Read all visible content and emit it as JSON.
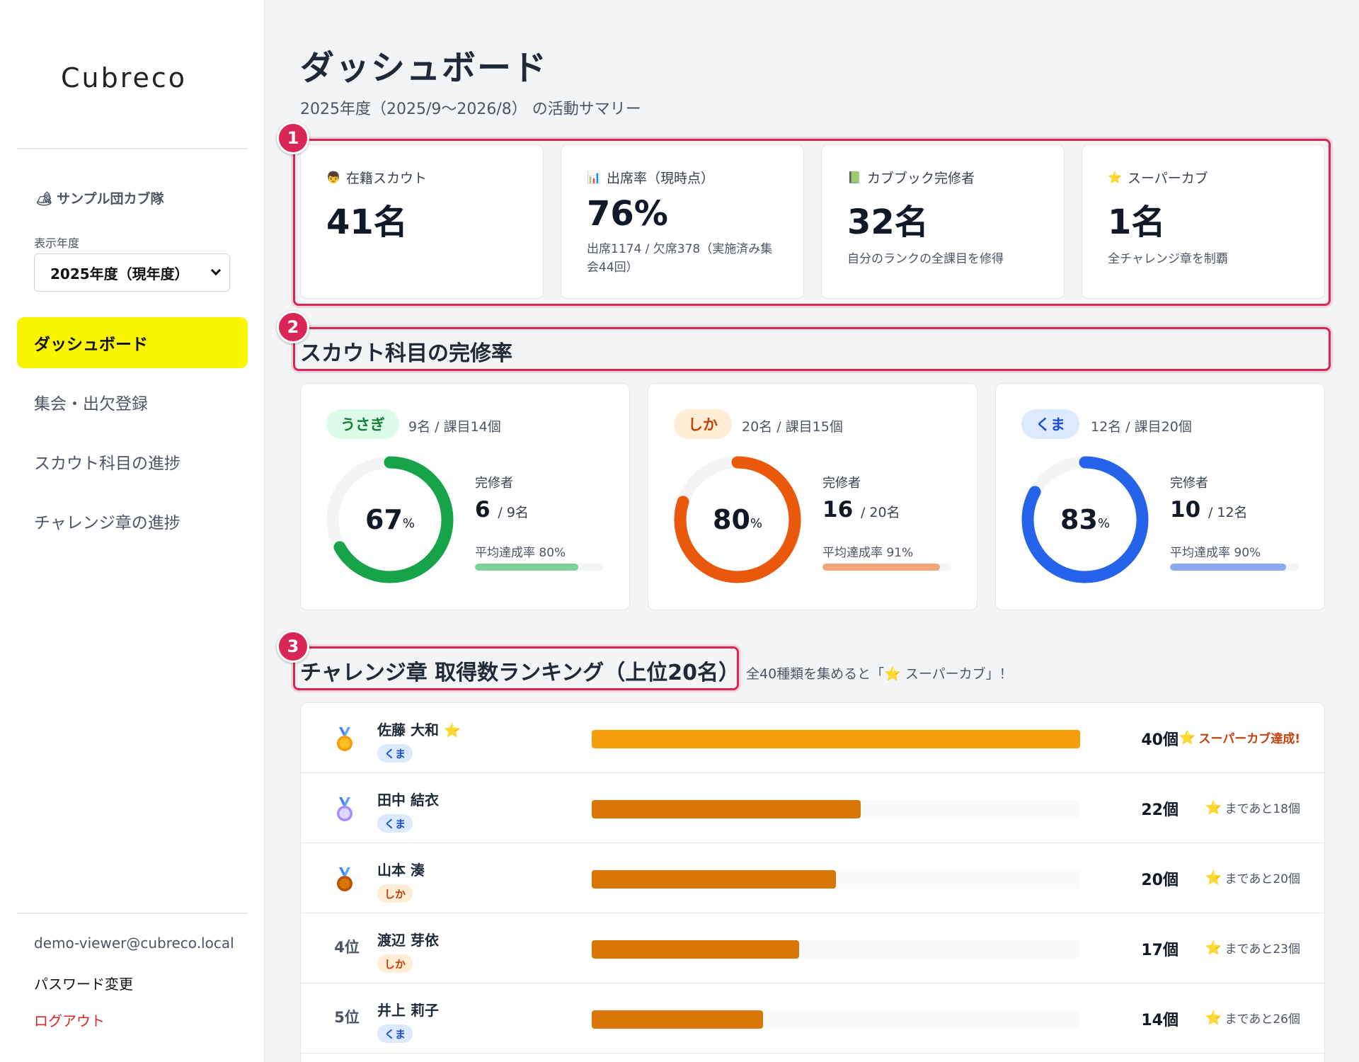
{
  "sidebar": {
    "logo": "Cubreco",
    "troop_name": "サンプル団カブ隊",
    "year_label": "表示年度",
    "year_selected": "2025年度（現年度）",
    "nav": [
      "ダッシュボード",
      "集会・出欠登録",
      "スカウト科目の進捗",
      "チャレンジ章の進捗"
    ],
    "user_email": "demo-viewer@cubreco.local",
    "password_change": "パスワード変更",
    "logout": "ログアウト"
  },
  "header": {
    "title": "ダッシュボード",
    "subtitle": "2025年度（2025/9〜2026/8） の活動サマリー"
  },
  "callouts": [
    "1",
    "2",
    "3"
  ],
  "stats": [
    {
      "icon": "👦",
      "label": "在籍スカウト",
      "value": "41名",
      "note": ""
    },
    {
      "icon": "📊",
      "label": "出席率（現時点）",
      "value": "76%",
      "note": "出席1174 / 欠席378（実施済み集会44回）"
    },
    {
      "icon": "📗",
      "label": "カブブック完修者",
      "value": "32名",
      "note": "自分のランクの全課目を修得"
    },
    {
      "icon": "⭐",
      "label": "スーパーカブ",
      "value": "1名",
      "note": "全チャレンジ章を制覇"
    }
  ],
  "completion": {
    "title": "スカウト科目の完修率",
    "completers_label": "完修者",
    "ranks": [
      {
        "name": "うさぎ",
        "info": "9名 / 課目14個",
        "percent": 67,
        "completed": "6",
        "total": "/ 9名",
        "avg_label": "平均達成率 80%",
        "avg": 80,
        "color": "#16a34a",
        "light": "#7fcf98",
        "pill_bg": "#dcfce7",
        "pill_fg": "#15803d"
      },
      {
        "name": "しか",
        "info": "20名 / 課目15個",
        "percent": 80,
        "completed": "16",
        "total": "/ 20名",
        "avg_label": "平均達成率 91%",
        "avg": 91,
        "color": "#ea580c",
        "light": "#f0a57a",
        "pill_bg": "#ffedd5",
        "pill_fg": "#c2410c"
      },
      {
        "name": "くま",
        "info": "12名 / 課目20個",
        "percent": 83,
        "completed": "10",
        "total": "/ 12名",
        "avg_label": "平均達成率 90%",
        "avg": 90,
        "color": "#2563eb",
        "light": "#8aa9ee",
        "pill_bg": "#dbeafe",
        "pill_fg": "#1d4ed8"
      }
    ]
  },
  "ranking": {
    "title": "チャレンジ章 取得数ランキング（上位20名）",
    "note": "全40種類を集めると「⭐ スーパーカブ」！",
    "max": 40,
    "rows": [
      {
        "rank": "",
        "medal": "gold",
        "name": "佐藤 大和",
        "name_star": "⭐",
        "tag": "くま",
        "count": 40,
        "count_label": "40個",
        "status": "スーパーカブ達成!",
        "done": true
      },
      {
        "rank": "",
        "medal": "silver",
        "name": "田中 結衣",
        "name_star": "",
        "tag": "くま",
        "count": 22,
        "count_label": "22個",
        "status": "まであと18個",
        "done": false
      },
      {
        "rank": "",
        "medal": "bronze",
        "name": "山本 湊",
        "name_star": "",
        "tag": "しか",
        "count": 20,
        "count_label": "20個",
        "status": "まであと20個",
        "done": false
      },
      {
        "rank": "4位",
        "medal": "",
        "name": "渡辺 芽依",
        "name_star": "",
        "tag": "しか",
        "count": 17,
        "count_label": "17個",
        "status": "まであと23個",
        "done": false
      },
      {
        "rank": "5位",
        "medal": "",
        "name": "井上 莉子",
        "name_star": "",
        "tag": "くま",
        "count": 14,
        "count_label": "14個",
        "status": "まであと26個",
        "done": false
      }
    ]
  }
}
